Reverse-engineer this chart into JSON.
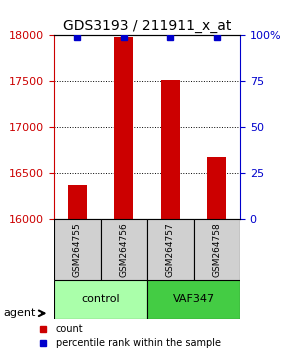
{
  "title": "GDS3193 / 211911_x_at",
  "samples": [
    "GSM264755",
    "GSM264756",
    "GSM264757",
    "GSM264758"
  ],
  "count_values": [
    16380,
    17980,
    17520,
    16680
  ],
  "percentile_values": [
    99,
    99,
    99,
    99
  ],
  "ylim_left": [
    16000,
    18000
  ],
  "ylim_right": [
    0,
    100
  ],
  "yticks_left": [
    16000,
    16500,
    17000,
    17500,
    18000
  ],
  "yticks_right": [
    0,
    25,
    50,
    75,
    100
  ],
  "groups": [
    {
      "label": "control",
      "samples": [
        0,
        1
      ],
      "color": "#aaffaa"
    },
    {
      "label": "VAF347",
      "samples": [
        2,
        3
      ],
      "color": "#44cc44"
    }
  ],
  "bar_color": "#cc0000",
  "dot_color": "#0000cc",
  "left_tick_color": "#cc0000",
  "right_tick_color": "#0000cc",
  "legend_count_color": "#cc0000",
  "legend_pct_color": "#0000cc",
  "background_color": "#ffffff",
  "plot_bg_color": "#ffffff",
  "grid_color": "#000000",
  "bar_width": 0.4,
  "agent_label": "agent",
  "legend_count_label": "count",
  "legend_pct_label": "percentile rank within the sample"
}
